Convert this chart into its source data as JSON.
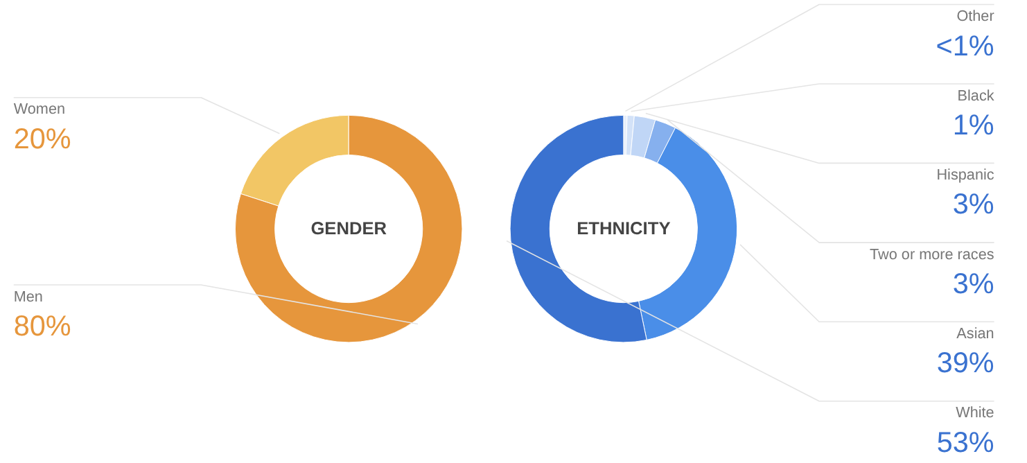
{
  "chart_data": [
    {
      "type": "donut",
      "title": "GENDER",
      "categories": [
        "Women",
        "Men"
      ],
      "values": [
        20,
        80
      ],
      "colors": [
        "#f2c665",
        "#e6963c"
      ],
      "value_labels": [
        "20%",
        "80%"
      ]
    },
    {
      "type": "donut",
      "title": "ETHNICITY",
      "categories": [
        "Other",
        "Black",
        "Hispanic",
        "Two or more races",
        "Asian",
        "White"
      ],
      "values": [
        0.5,
        1,
        3,
        3,
        39,
        53
      ],
      "colors": [
        "#e8effa",
        "#d3e2f8",
        "#c0d6f6",
        "#86b0ee",
        "#4a8ee8",
        "#3a72d0"
      ],
      "value_labels": [
        "<1%",
        "1%",
        "3%",
        "3%",
        "39%",
        "53%"
      ]
    }
  ]
}
